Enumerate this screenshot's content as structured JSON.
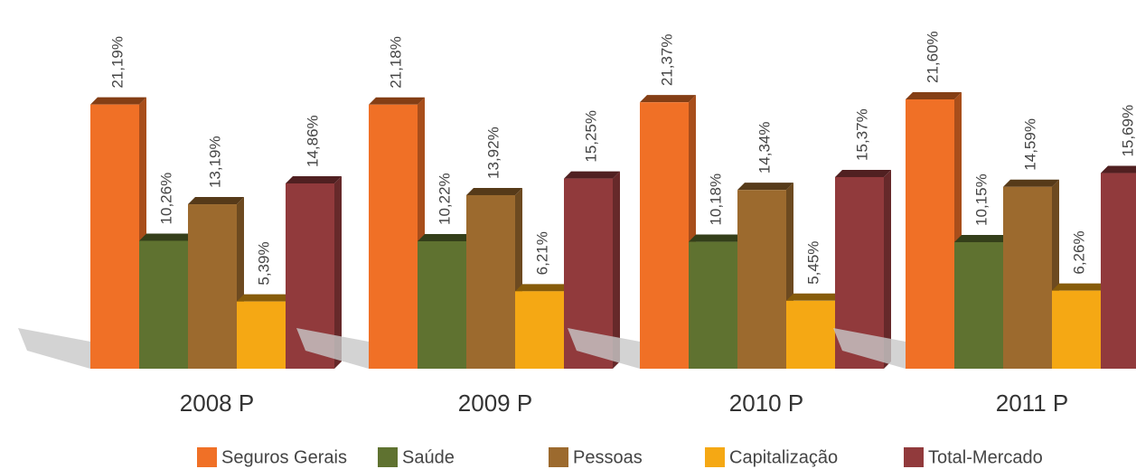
{
  "chart_data": {
    "type": "bar3d",
    "categories": [
      "2008 P",
      "2009 P",
      "2010 P",
      "2011 P"
    ],
    "series": [
      {
        "name": "Seguros Gerais",
        "color": "#f07026",
        "values": [
          21.19,
          21.18,
          21.37,
          21.6
        ],
        "value_labels": [
          "21,19%",
          "21,18%",
          "21,37%",
          "21,60%"
        ]
      },
      {
        "name": "Saúde",
        "color": "#5f7230",
        "values": [
          10.26,
          10.22,
          10.18,
          10.15
        ],
        "value_labels": [
          "10,26%",
          "10,22%",
          "10,18%",
          "10,15%"
        ]
      },
      {
        "name": "Pessoas",
        "color": "#9c6a2e",
        "values": [
          13.19,
          13.92,
          14.34,
          14.59
        ],
        "value_labels": [
          "13,19%",
          "13,92%",
          "14,34%",
          "14,59%"
        ]
      },
      {
        "name": "Capitalização",
        "color": "#f5a814",
        "values": [
          5.39,
          6.21,
          5.45,
          6.26
        ],
        "value_labels": [
          "5,39%",
          "6,21%",
          "5,45%",
          "6,26%"
        ]
      },
      {
        "name": "Total-Mercado",
        "color": "#913a3c",
        "values": [
          14.86,
          15.25,
          15.37,
          15.69
        ],
        "value_labels": [
          "14,86%",
          "15,25%",
          "15,37%",
          "15,69%"
        ]
      }
    ]
  }
}
